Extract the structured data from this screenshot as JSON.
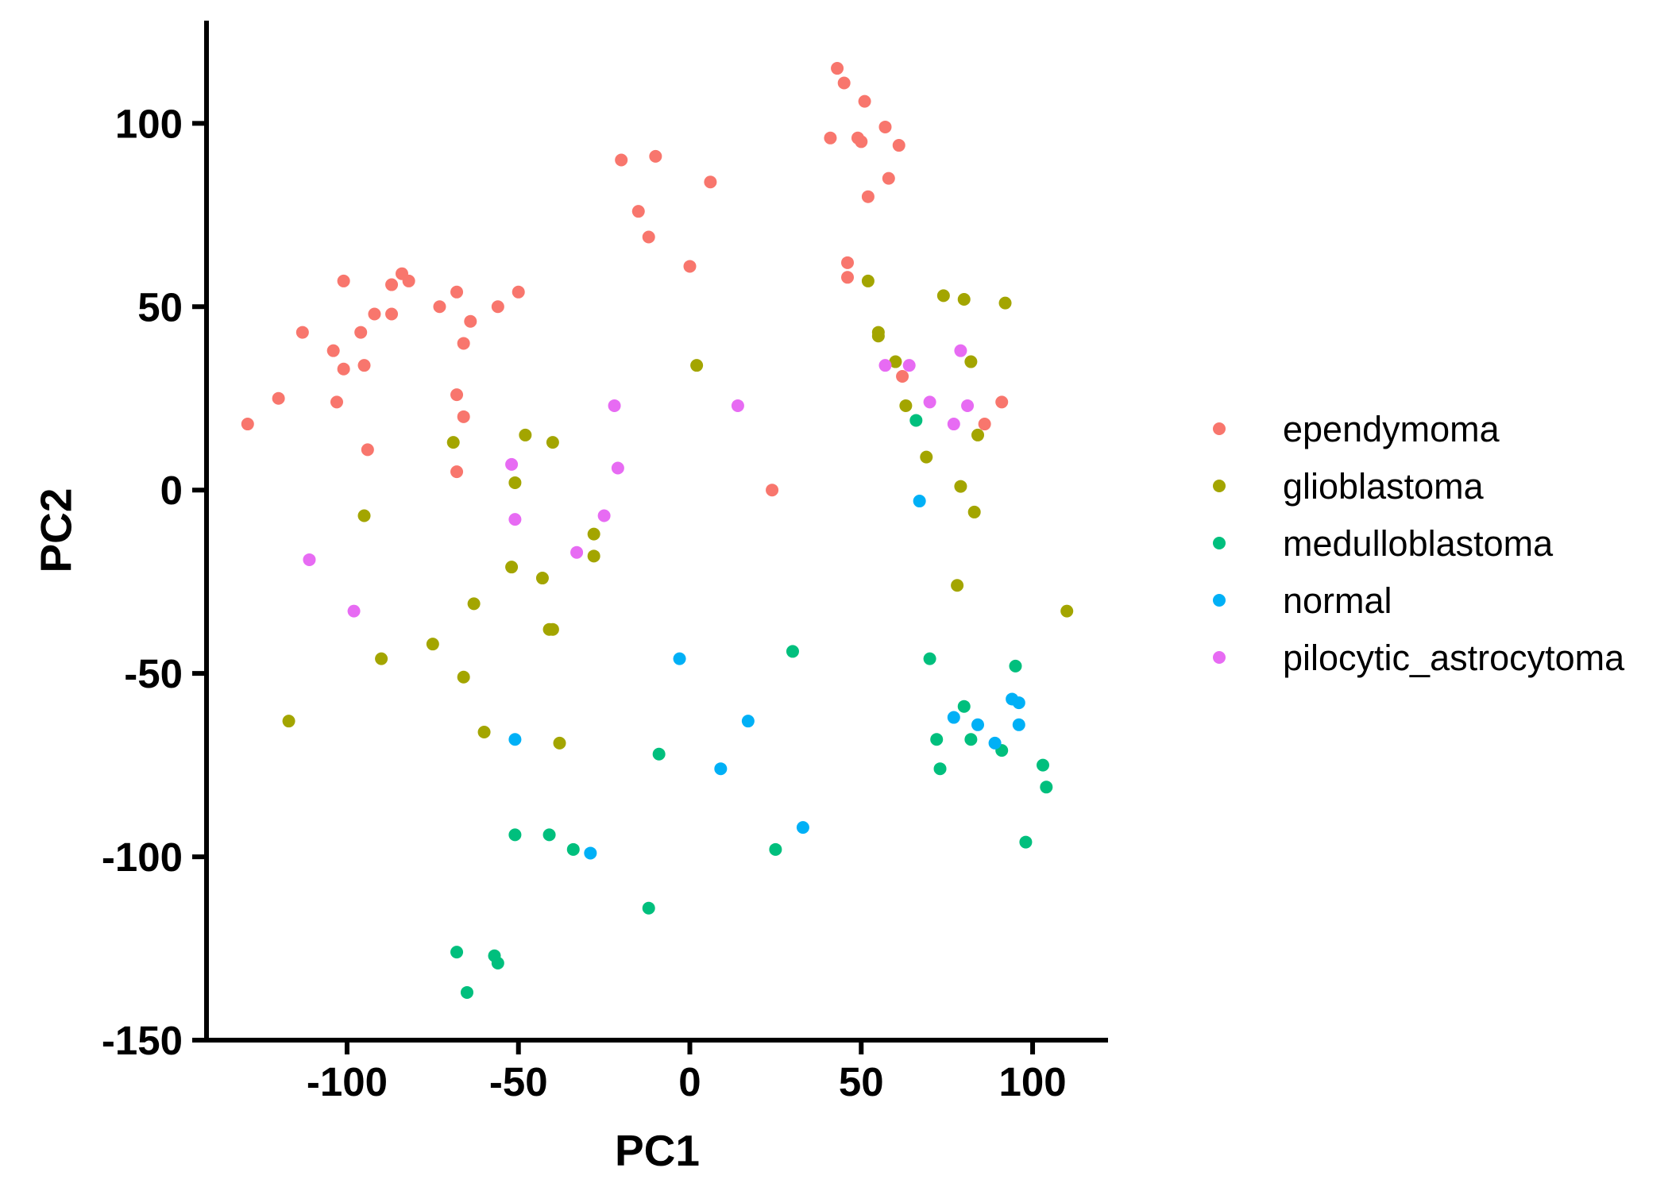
{
  "chart_data": {
    "type": "scatter",
    "xlabel": "PC1",
    "ylabel": "PC2",
    "xlim": [
      -141,
      122
    ],
    "ylim": [
      -150,
      128
    ],
    "xticks": [
      -100,
      -50,
      0,
      50,
      100
    ],
    "yticks": [
      100,
      50,
      0,
      -50,
      -100,
      -150
    ],
    "xtick_labels": [
      "-100",
      "-50",
      "0",
      "50",
      "100"
    ],
    "ytick_labels": [
      "100",
      "50",
      "0",
      "-50",
      "-100",
      "-150"
    ],
    "grid": false,
    "legend_position": "right",
    "series": [
      {
        "name": "ependymoma",
        "color": "#F8766D",
        "points": [
          [
            -129,
            18
          ],
          [
            -120,
            25
          ],
          [
            -113,
            43
          ],
          [
            -104,
            38
          ],
          [
            -103,
            24
          ],
          [
            -101,
            57
          ],
          [
            -101,
            33
          ],
          [
            -96,
            43
          ],
          [
            -95,
            34
          ],
          [
            -94,
            11
          ],
          [
            -92,
            48
          ],
          [
            -87,
            56
          ],
          [
            -87,
            48
          ],
          [
            -84,
            59
          ],
          [
            -82,
            57
          ],
          [
            -73,
            50
          ],
          [
            -68,
            54
          ],
          [
            -68,
            26
          ],
          [
            -68,
            5
          ],
          [
            -66,
            40
          ],
          [
            -66,
            20
          ],
          [
            -64,
            46
          ],
          [
            -56,
            50
          ],
          [
            -50,
            54
          ],
          [
            -20,
            90
          ],
          [
            -15,
            76
          ],
          [
            -12,
            69
          ],
          [
            -10,
            91
          ],
          [
            0,
            61
          ],
          [
            6,
            84
          ],
          [
            24,
            0
          ],
          [
            41,
            96
          ],
          [
            43,
            115
          ],
          [
            45,
            111
          ],
          [
            46,
            62
          ],
          [
            46,
            58
          ],
          [
            49,
            96
          ],
          [
            50,
            95
          ],
          [
            51,
            106
          ],
          [
            52,
            80
          ],
          [
            57,
            99
          ],
          [
            58,
            85
          ],
          [
            61,
            94
          ],
          [
            62,
            31
          ],
          [
            86,
            18
          ],
          [
            91,
            24
          ]
        ]
      },
      {
        "name": "glioblastoma",
        "color": "#A3A500",
        "points": [
          [
            -117,
            -63
          ],
          [
            -95,
            -7
          ],
          [
            -90,
            -46
          ],
          [
            -75,
            -42
          ],
          [
            -69,
            13
          ],
          [
            -66,
            -51
          ],
          [
            -63,
            -31
          ],
          [
            -60,
            -66
          ],
          [
            -52,
            -21
          ],
          [
            -51,
            2
          ],
          [
            -48,
            15
          ],
          [
            -43,
            -24
          ],
          [
            -41,
            -38
          ],
          [
            -40,
            13
          ],
          [
            -40,
            -38
          ],
          [
            -38,
            -69
          ],
          [
            -28,
            -12
          ],
          [
            -28,
            -18
          ],
          [
            2,
            34
          ],
          [
            52,
            57
          ],
          [
            55,
            42
          ],
          [
            55,
            43
          ],
          [
            60,
            35
          ],
          [
            63,
            23
          ],
          [
            69,
            9
          ],
          [
            74,
            53
          ],
          [
            78,
            -26
          ],
          [
            79,
            1
          ],
          [
            80,
            52
          ],
          [
            82,
            35
          ],
          [
            83,
            -6
          ],
          [
            84,
            15
          ],
          [
            92,
            51
          ],
          [
            110,
            -33
          ]
        ]
      },
      {
        "name": "medulloblastoma",
        "color": "#00BF7D",
        "points": [
          [
            -68,
            -126
          ],
          [
            -65,
            -137
          ],
          [
            -57,
            -127
          ],
          [
            -56,
            -129
          ],
          [
            -51,
            -94
          ],
          [
            -41,
            -94
          ],
          [
            -34,
            -98
          ],
          [
            -12,
            -114
          ],
          [
            -9,
            -72
          ],
          [
            25,
            -98
          ],
          [
            30,
            -44
          ],
          [
            66,
            19
          ],
          [
            70,
            -46
          ],
          [
            72,
            -68
          ],
          [
            73,
            -76
          ],
          [
            80,
            -59
          ],
          [
            82,
            -68
          ],
          [
            91,
            -71
          ],
          [
            95,
            -48
          ],
          [
            98,
            -96
          ],
          [
            103,
            -75
          ],
          [
            104,
            -81
          ]
        ]
      },
      {
        "name": "normal",
        "color": "#00B0F6",
        "points": [
          [
            -51,
            -68
          ],
          [
            -29,
            -99
          ],
          [
            -3,
            -46
          ],
          [
            9,
            -76
          ],
          [
            17,
            -63
          ],
          [
            33,
            -92
          ],
          [
            67,
            -3
          ],
          [
            77,
            -62
          ],
          [
            84,
            -64
          ],
          [
            89,
            -69
          ],
          [
            94,
            -57
          ],
          [
            96,
            -58
          ],
          [
            96,
            -64
          ]
        ]
      },
      {
        "name": "pilocytic_astrocytoma",
        "color": "#E76BF3",
        "points": [
          [
            -111,
            -19
          ],
          [
            -98,
            -33
          ],
          [
            -52,
            7
          ],
          [
            -51,
            -8
          ],
          [
            -33,
            -17
          ],
          [
            -25,
            -7
          ],
          [
            -22,
            23
          ],
          [
            -21,
            6
          ],
          [
            14,
            23
          ],
          [
            57,
            34
          ],
          [
            64,
            34
          ],
          [
            70,
            24
          ],
          [
            77,
            18
          ],
          [
            79,
            38
          ],
          [
            81,
            23
          ]
        ]
      }
    ]
  }
}
